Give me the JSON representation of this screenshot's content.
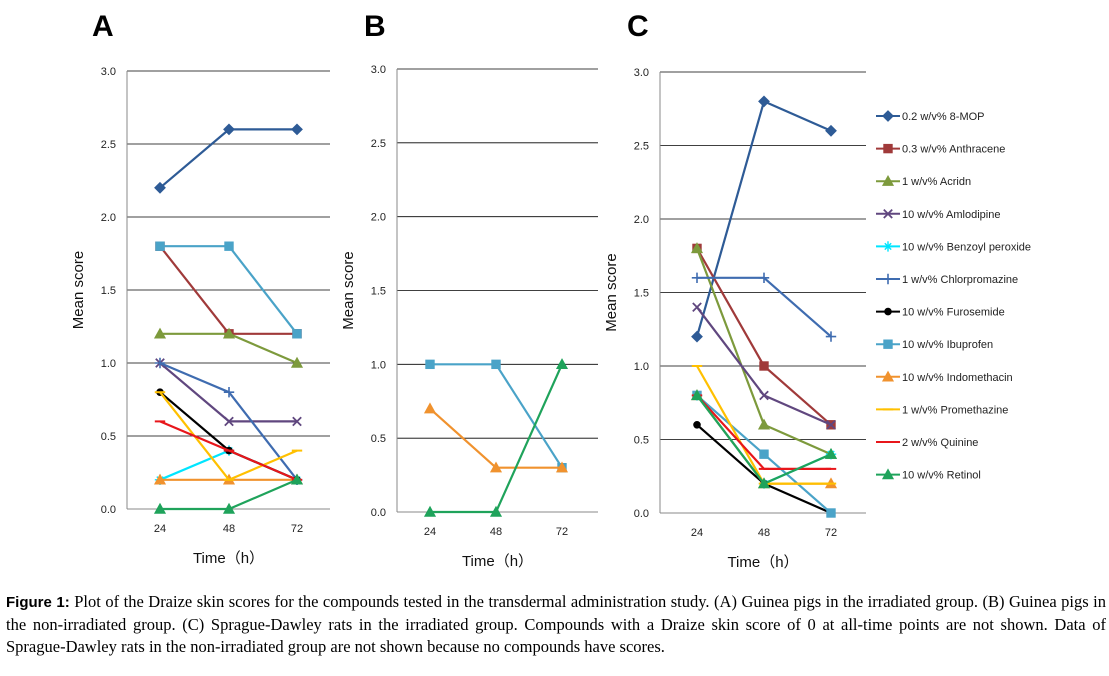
{
  "caption": {
    "label": "Figure 1:",
    "text": "Plot of the Draize skin scores for the compounds tested in the transdermal administration study. (A) Guinea pigs in the irradiated group. (B) Guinea pigs in the non-irradiated group. (C) Sprague-Dawley rats in the irradiated group. Compounds with a Draize skin score of 0 at all-time points are not shown. Data of Sprague-Dawley rats in the non-irradiated group are not shown because no compounds have scores."
  },
  "chart_data": [
    {
      "panel": "A",
      "type": "line",
      "x": [
        24,
        48,
        72
      ],
      "xlabel": "Time（h）",
      "ylabel": "Mean score",
      "ylim": [
        0,
        3
      ],
      "yticks": [
        "0.0",
        "0.5",
        "1.0",
        "1.5",
        "2.0",
        "2.5",
        "3.0"
      ],
      "grid": "horizontal",
      "series": [
        {
          "name": "0.2 w/v% 8-MOP",
          "color": "#2e5b96",
          "marker": "diamond",
          "values": [
            2.2,
            2.6,
            2.6
          ]
        },
        {
          "name": "0.3 w/v% Anthracene",
          "color": "#a03a3a",
          "marker": "square",
          "values": [
            1.8,
            1.2,
            1.2
          ]
        },
        {
          "name": "1 w/v% Acridn",
          "color": "#7d9a3c",
          "marker": "triangle",
          "values": [
            1.2,
            1.2,
            1.0
          ]
        },
        {
          "name": "10 w/v% Amlodipine",
          "color": "#60477f",
          "marker": "x",
          "values": [
            1.0,
            0.6,
            0.6
          ]
        },
        {
          "name": "10 w/v% Benzoyl peroxide",
          "color": "#00e5ff",
          "marker": "star",
          "values": [
            0.2,
            0.4,
            0.2
          ]
        },
        {
          "name": "1 w/v% Chlorpromazine",
          "color": "#3f6cb0",
          "marker": "plus",
          "values": [
            1.0,
            0.8,
            0.2
          ]
        },
        {
          "name": "10 w/v% Furosemide",
          "color": "#000000",
          "marker": "circle",
          "values": [
            0.8,
            0.4,
            0.2
          ]
        },
        {
          "name": "10 w/v% Ibuprofen",
          "color": "#4aa3c8",
          "marker": "square",
          "values": [
            1.8,
            1.8,
            1.2
          ]
        },
        {
          "name": "10 w/v% Indomethacin",
          "color": "#f0922e",
          "marker": "triangle",
          "values": [
            0.2,
            0.2,
            0.2
          ]
        },
        {
          "name": "1 w/v% Promethazine",
          "color": "#ffc000",
          "marker": "dash",
          "values": [
            0.8,
            0.2,
            0.4
          ]
        },
        {
          "name": "2 w/v% Quinine",
          "color": "#e8161b",
          "marker": "dash",
          "values": [
            0.6,
            0.4,
            0.2
          ]
        },
        {
          "name": "10 w/v% Retinol",
          "color": "#1fa35b",
          "marker": "triangle",
          "values": [
            0.0,
            0.0,
            0.2
          ]
        }
      ]
    },
    {
      "panel": "B",
      "type": "line",
      "x": [
        24,
        48,
        72
      ],
      "xlabel": "Time（h）",
      "ylabel": "Mean score",
      "ylim": [
        0,
        3
      ],
      "yticks": [
        "0.0",
        "0.5",
        "1.0",
        "1.5",
        "2.0",
        "2.5",
        "3.0"
      ],
      "grid": "horizontal",
      "series": [
        {
          "name": "10 w/v% Ibuprofen",
          "color": "#4aa3c8",
          "marker": "square",
          "values": [
            1.0,
            1.0,
            0.3
          ]
        },
        {
          "name": "10 w/v% Indomethacin",
          "color": "#f0922e",
          "marker": "triangle",
          "values": [
            0.7,
            0.3,
            0.3
          ]
        },
        {
          "name": "10 w/v% Retinol",
          "color": "#1fa35b",
          "marker": "triangle",
          "values": [
            0.0,
            0.0,
            1.0
          ]
        }
      ]
    },
    {
      "panel": "C",
      "type": "line",
      "x": [
        24,
        48,
        72
      ],
      "xlabel": "Time（h）",
      "ylabel": "Mean score",
      "ylim": [
        0,
        3
      ],
      "yticks": [
        "0.0",
        "0.5",
        "1.0",
        "1.5",
        "2.0",
        "2.5",
        "3.0"
      ],
      "grid": "horizontal",
      "legend": "right",
      "series": [
        {
          "name": "0.2 w/v% 8-MOP",
          "color": "#2e5b96",
          "marker": "diamond",
          "values": [
            1.2,
            2.8,
            2.6
          ]
        },
        {
          "name": "0.3 w/v% Anthracene",
          "color": "#a03a3a",
          "marker": "square",
          "values": [
            1.8,
            1.0,
            0.6
          ]
        },
        {
          "name": "1 w/v% Acridn",
          "color": "#7d9a3c",
          "marker": "triangle",
          "values": [
            1.8,
            0.6,
            0.4
          ]
        },
        {
          "name": "10 w/v% Amlodipine",
          "color": "#60477f",
          "marker": "x",
          "values": [
            1.4,
            0.8,
            0.6
          ]
        },
        {
          "name": "10 w/v% Benzoyl peroxide",
          "color": "#00e5ff",
          "marker": "star",
          "values": [
            0.8,
            0.2,
            0.4
          ]
        },
        {
          "name": "1 w/v% Chlorpromazine",
          "color": "#3f6cb0",
          "marker": "plus",
          "values": [
            1.6,
            1.6,
            1.2
          ]
        },
        {
          "name": "10 w/v% Furosemide",
          "color": "#000000",
          "marker": "circle",
          "values": [
            0.6,
            0.2,
            0.0
          ]
        },
        {
          "name": "10 w/v% Ibuprofen",
          "color": "#4aa3c8",
          "marker": "square",
          "values": [
            0.8,
            0.4,
            0.0
          ]
        },
        {
          "name": "10 w/v% Indomethacin",
          "color": "#f0922e",
          "marker": "triangle",
          "values": [
            0.8,
            0.2,
            0.2
          ]
        },
        {
          "name": "1 w/v% Promethazine",
          "color": "#ffc000",
          "marker": "dash",
          "values": [
            1.0,
            0.2,
            0.2
          ]
        },
        {
          "name": "2 w/v% Quinine",
          "color": "#e8161b",
          "marker": "dash",
          "values": [
            0.8,
            0.3,
            0.3
          ]
        },
        {
          "name": "10 w/v% Retinol",
          "color": "#1fa35b",
          "marker": "triangle",
          "values": [
            0.8,
            0.2,
            0.4
          ]
        }
      ]
    }
  ]
}
